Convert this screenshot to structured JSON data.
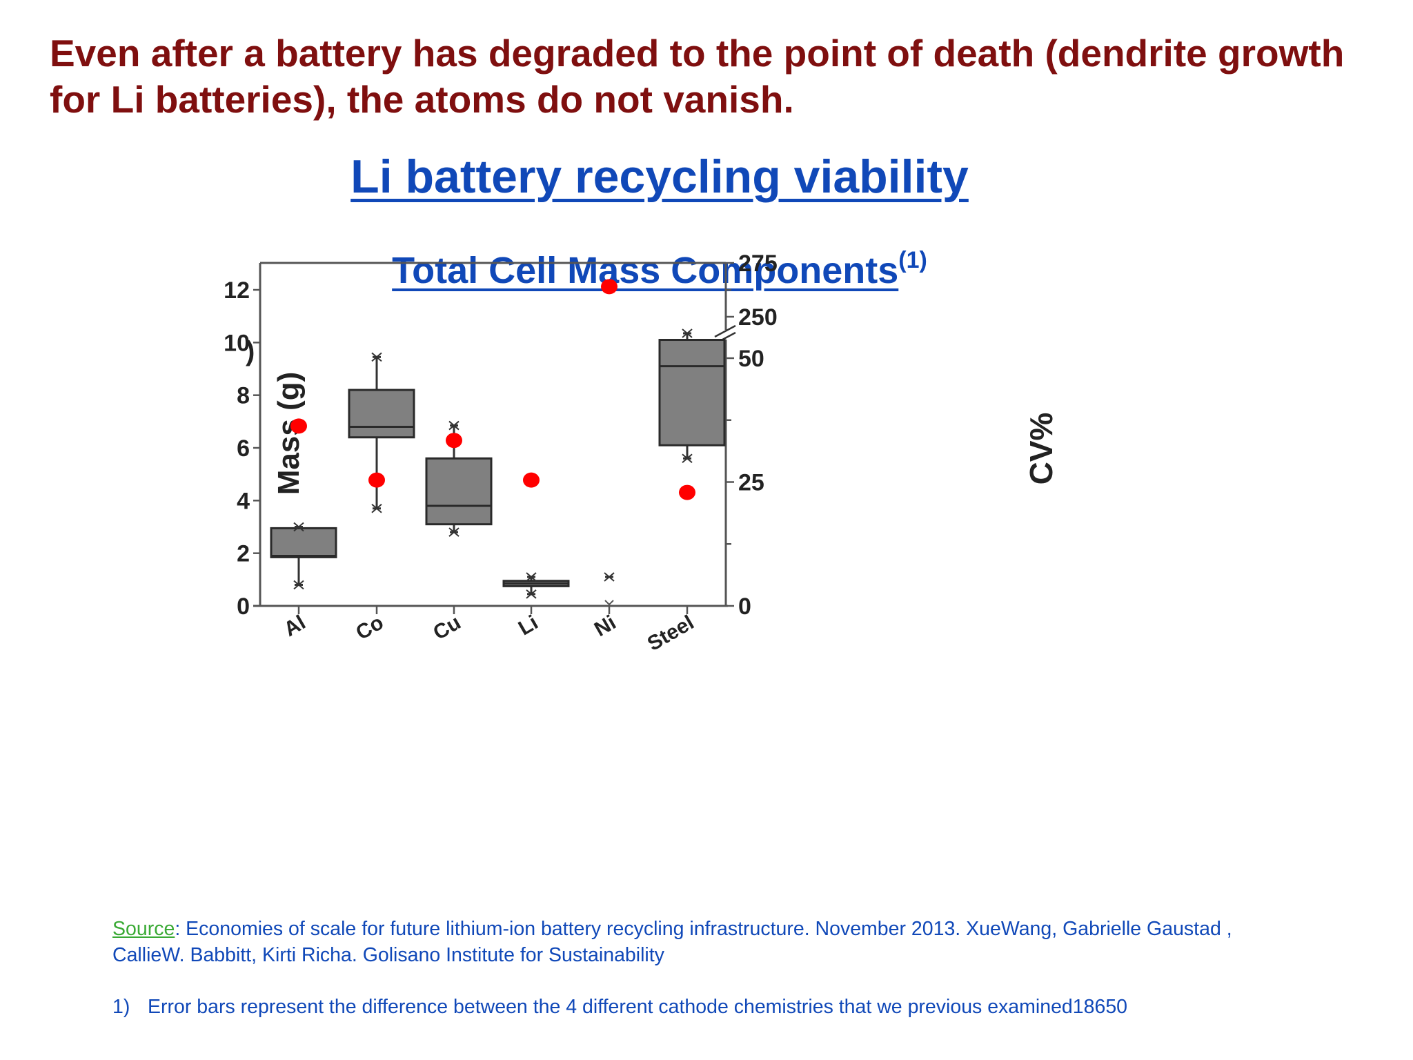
{
  "slide": {
    "headline": "Even after a battery has degraded to the point of death (dendrite growth for Li batteries), the atoms do not vanish.",
    "title": "Li battery recycling viability",
    "subtitle": "Total Cell Mass Components",
    "subtitle_superscript": "(1)",
    "source_label": "Source",
    "source_text": ": Economies of scale for future lithium-ion battery recycling infrastructure. November 2013. XueWang, Gabrielle Gaustad , CallieW. Babbitt, Kirti Richa. Golisano Institute for Sustainability",
    "footnote_number": "1)",
    "footnote_text": "Error bars represent the difference between the 4 different cathode chemistries that we previous examined18650",
    "colors": {
      "headline": "#7f0f0f",
      "title": "#1048b8",
      "source_label": "#3aaa35",
      "box_fill": "#808080",
      "cv_marker": "#ff0000"
    }
  },
  "chart_data": {
    "type": "box",
    "panel_label": ")",
    "title": "Total Cell Mass Components",
    "xlabel": "",
    "ylabel": "Mass (g)",
    "y2label": "CV%",
    "categories": [
      "Al",
      "Co",
      "Cu",
      "Li",
      "Ni",
      "Steel"
    ],
    "ylim": [
      0,
      13
    ],
    "yticks": [
      0,
      2,
      4,
      6,
      8,
      10,
      12
    ],
    "y2_ticks": [
      0,
      25,
      50,
      250,
      275
    ],
    "y2_axis_break": "between 50 and 250",
    "grid": false,
    "legend": null,
    "series": [
      {
        "name": "Mass (g) box",
        "axis": "left",
        "boxes": [
          {
            "category": "Al",
            "q1": 1.85,
            "median": 1.9,
            "q3": 2.95,
            "min": 0.8,
            "max": 3.0
          },
          {
            "category": "Co",
            "q1": 6.4,
            "median": 6.8,
            "q3": 8.2,
            "min": 3.7,
            "max": 9.45
          },
          {
            "category": "Cu",
            "q1": 3.1,
            "median": 3.8,
            "q3": 5.6,
            "min": 2.8,
            "max": 6.85
          },
          {
            "category": "Li",
            "q1": 0.75,
            "median": 0.85,
            "q3": 0.95,
            "min": 0.45,
            "max": 1.1
          },
          {
            "category": "Ni",
            "q1": null,
            "median": null,
            "q3": null,
            "min": 0.0,
            "max": 1.1
          },
          {
            "category": "Steel",
            "q1": 6.1,
            "median": 9.1,
            "q3": 10.1,
            "min": 5.6,
            "max": 10.35
          }
        ]
      },
      {
        "name": "CV%",
        "axis": "right",
        "marker": "red circle",
        "values": [
          36.3,
          25.4,
          33.4,
          25.4,
          264,
          22.9
        ]
      }
    ]
  }
}
